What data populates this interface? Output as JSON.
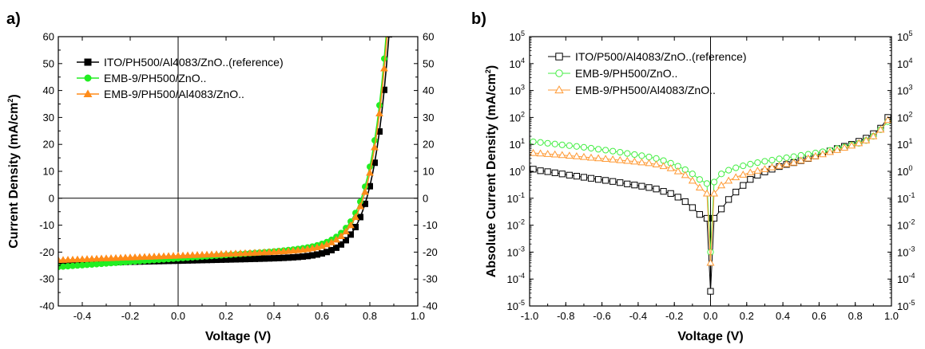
{
  "chart_data": [
    {
      "panel": "a)",
      "type": "line",
      "title": "",
      "xlabel": "Voltage (V)",
      "ylabel": "Current Density (mA/cm",
      "ylabel_sup": "2",
      "ylabel_end": ")",
      "xlim": [
        -0.5,
        1.0
      ],
      "ylim": [
        -40,
        60
      ],
      "xticks": [
        "-0.4",
        "-0.2",
        "0.0",
        "0.2",
        "0.4",
        "0.6",
        "0.8",
        "1.0"
      ],
      "xtick_values": [
        -0.4,
        -0.2,
        0.0,
        0.2,
        0.4,
        0.6,
        0.8,
        1.0
      ],
      "yticks": [
        "-40",
        "-30",
        "-20",
        "-10",
        "0",
        "10",
        "20",
        "30",
        "40",
        "50",
        "60"
      ],
      "ytick_values": [
        -40,
        -30,
        -20,
        -10,
        0,
        10,
        20,
        30,
        40,
        50,
        60
      ],
      "right_axis_mirrored": true,
      "legend_position": "top-left",
      "series": [
        {
          "name": "ITO/PH500/Al4083/ZnO..(reference)",
          "color": "#000000",
          "marker": "square",
          "filled": true,
          "jsc": -24.2,
          "slope": 3.4,
          "voc": 0.787,
          "a": 0.0342
        },
        {
          "name": "EMB-9/PH500/ZnO..",
          "color": "#22ee22",
          "marker": "circle",
          "filled": true,
          "jsc": -25.5,
          "slope": 10.5,
          "voc": 0.765,
          "a": 0.0385
        },
        {
          "name": "EMB-9/PH500/Al4083/ZnO..",
          "color": "#ff8c1a",
          "marker": "triangle",
          "filled": true,
          "jsc": -23.0,
          "slope": 5.5,
          "voc": 0.772,
          "a": 0.0362
        }
      ]
    },
    {
      "panel": "b)",
      "type": "scatter",
      "scale": "log",
      "title": "",
      "xlabel": "Voltage (V)",
      "ylabel": "Absolute Current Density (mA/cm",
      "ylabel_sup": "2",
      "ylabel_end": ")",
      "xlim": [
        -1.0,
        1.0
      ],
      "ylim_exp": [
        -5,
        5
      ],
      "xticks": [
        "-1.0",
        "-0.8",
        "-0.6",
        "-0.4",
        "-0.2",
        "0.0",
        "0.2",
        "0.4",
        "0.6",
        "0.8",
        "1.0"
      ],
      "xtick_values": [
        -1.0,
        -0.8,
        -0.6,
        -0.4,
        -0.2,
        0.0,
        0.2,
        0.4,
        0.6,
        0.8,
        1.0
      ],
      "ytick_base": "10",
      "ytick_exps": [
        "-5",
        "-4",
        "-3",
        "-2",
        "-1",
        "0",
        "1",
        "2",
        "3",
        "4",
        "5"
      ],
      "right_axis_mirrored": true,
      "legend_position": "top-left",
      "series": [
        {
          "name": "ITO/P500/Al4083/ZnO..(reference)",
          "color": "#000000",
          "marker": "square",
          "filled": false,
          "points": [
            [
              -0.98,
              1.2
            ],
            [
              -0.94,
              1.05
            ],
            [
              -0.9,
              0.97
            ],
            [
              -0.86,
              0.88
            ],
            [
              -0.82,
              0.8
            ],
            [
              -0.78,
              0.72
            ],
            [
              -0.74,
              0.66
            ],
            [
              -0.7,
              0.6
            ],
            [
              -0.66,
              0.55
            ],
            [
              -0.62,
              0.5
            ],
            [
              -0.58,
              0.46
            ],
            [
              -0.54,
              0.42
            ],
            [
              -0.5,
              0.38
            ],
            [
              -0.46,
              0.34
            ],
            [
              -0.42,
              0.31
            ],
            [
              -0.38,
              0.28
            ],
            [
              -0.34,
              0.25
            ],
            [
              -0.3,
              0.22
            ],
            [
              -0.26,
              0.18
            ],
            [
              -0.22,
              0.15
            ],
            [
              -0.18,
              0.11
            ],
            [
              -0.14,
              0.075
            ],
            [
              -0.1,
              0.045
            ],
            [
              -0.06,
              0.025
            ],
            [
              -0.02,
              0.018
            ],
            [
              0.0,
              3.5e-05
            ],
            [
              0.02,
              0.018
            ],
            [
              0.06,
              0.04
            ],
            [
              0.1,
              0.09
            ],
            [
              0.14,
              0.17
            ],
            [
              0.18,
              0.3
            ],
            [
              0.22,
              0.5
            ],
            [
              0.26,
              0.72
            ],
            [
              0.3,
              0.95
            ],
            [
              0.34,
              1.2
            ],
            [
              0.38,
              1.5
            ],
            [
              0.42,
              1.8
            ],
            [
              0.46,
              2.1
            ],
            [
              0.5,
              2.5
            ],
            [
              0.54,
              3.0
            ],
            [
              0.58,
              3.7
            ],
            [
              0.62,
              4.6
            ],
            [
              0.66,
              5.7
            ],
            [
              0.7,
              7.0
            ],
            [
              0.74,
              8.5
            ],
            [
              0.78,
              10
            ],
            [
              0.82,
              13
            ],
            [
              0.86,
              17
            ],
            [
              0.9,
              25
            ],
            [
              0.94,
              40
            ],
            [
              0.98,
              100
            ]
          ]
        },
        {
          "name": "EMB-9/PH500/ZnO..",
          "color": "#44ee44",
          "marker": "circle",
          "filled": false,
          "points": [
            [
              -0.98,
              12.5
            ],
            [
              -0.94,
              11.8
            ],
            [
              -0.9,
              11.0
            ],
            [
              -0.86,
              10.3
            ],
            [
              -0.82,
              9.6
            ],
            [
              -0.78,
              9.0
            ],
            [
              -0.74,
              8.4
            ],
            [
              -0.7,
              7.8
            ],
            [
              -0.66,
              7.2
            ],
            [
              -0.62,
              6.6
            ],
            [
              -0.58,
              6.1
            ],
            [
              -0.54,
              5.6
            ],
            [
              -0.5,
              5.1
            ],
            [
              -0.46,
              4.6
            ],
            [
              -0.42,
              4.2
            ],
            [
              -0.38,
              3.8
            ],
            [
              -0.34,
              3.4
            ],
            [
              -0.3,
              3.0
            ],
            [
              -0.26,
              2.5
            ],
            [
              -0.22,
              2.0
            ],
            [
              -0.18,
              1.55
            ],
            [
              -0.14,
              1.15
            ],
            [
              -0.1,
              0.8
            ],
            [
              -0.06,
              0.5
            ],
            [
              -0.02,
              0.35
            ],
            [
              0.0,
              0.001
            ],
            [
              0.02,
              0.4
            ],
            [
              0.06,
              0.8
            ],
            [
              0.1,
              1.1
            ],
            [
              0.14,
              1.35
            ],
            [
              0.18,
              1.6
            ],
            [
              0.22,
              1.85
            ],
            [
              0.26,
              2.1
            ],
            [
              0.3,
              2.35
            ],
            [
              0.34,
              2.6
            ],
            [
              0.38,
              2.9
            ],
            [
              0.42,
              3.2
            ],
            [
              0.46,
              3.5
            ],
            [
              0.5,
              3.9
            ],
            [
              0.54,
              4.3
            ],
            [
              0.58,
              4.8
            ],
            [
              0.62,
              5.3
            ],
            [
              0.66,
              6.0
            ],
            [
              0.7,
              7.0
            ],
            [
              0.74,
              8.0
            ],
            [
              0.78,
              9.5
            ],
            [
              0.82,
              11
            ],
            [
              0.86,
              14
            ],
            [
              0.9,
              20
            ],
            [
              0.94,
              35
            ],
            [
              0.98,
              70
            ]
          ]
        },
        {
          "name": "EMB-9/PH500/Al4083/ZnO..",
          "color": "#ff9933",
          "marker": "triangle",
          "filled": false,
          "points": [
            [
              -0.98,
              4.8
            ],
            [
              -0.94,
              4.6
            ],
            [
              -0.9,
              4.4
            ],
            [
              -0.86,
              4.2
            ],
            [
              -0.82,
              4.0
            ],
            [
              -0.78,
              3.8
            ],
            [
              -0.74,
              3.6
            ],
            [
              -0.7,
              3.4
            ],
            [
              -0.66,
              3.2
            ],
            [
              -0.62,
              3.05
            ],
            [
              -0.58,
              2.9
            ],
            [
              -0.54,
              2.75
            ],
            [
              -0.5,
              2.6
            ],
            [
              -0.46,
              2.45
            ],
            [
              -0.42,
              2.3
            ],
            [
              -0.38,
              2.15
            ],
            [
              -0.34,
              2.0
            ],
            [
              -0.3,
              1.8
            ],
            [
              -0.26,
              1.55
            ],
            [
              -0.22,
              1.3
            ],
            [
              -0.18,
              1.0
            ],
            [
              -0.14,
              0.72
            ],
            [
              -0.1,
              0.45
            ],
            [
              -0.06,
              0.25
            ],
            [
              -0.02,
              0.15
            ],
            [
              0.0,
              0.0004
            ],
            [
              0.02,
              0.15
            ],
            [
              0.06,
              0.3
            ],
            [
              0.1,
              0.45
            ],
            [
              0.14,
              0.6
            ],
            [
              0.18,
              0.75
            ],
            [
              0.22,
              0.9
            ],
            [
              0.26,
              1.05
            ],
            [
              0.3,
              1.2
            ],
            [
              0.34,
              1.4
            ],
            [
              0.38,
              1.6
            ],
            [
              0.42,
              1.85
            ],
            [
              0.46,
              2.1
            ],
            [
              0.5,
              2.5
            ],
            [
              0.54,
              3.0
            ],
            [
              0.58,
              3.6
            ],
            [
              0.62,
              4.3
            ],
            [
              0.66,
              5.2
            ],
            [
              0.7,
              6.2
            ],
            [
              0.74,
              7.5
            ],
            [
              0.78,
              9.0
            ],
            [
              0.82,
              11
            ],
            [
              0.86,
              14
            ],
            [
              0.9,
              20
            ],
            [
              0.94,
              35
            ],
            [
              0.98,
              80
            ]
          ]
        }
      ]
    }
  ]
}
